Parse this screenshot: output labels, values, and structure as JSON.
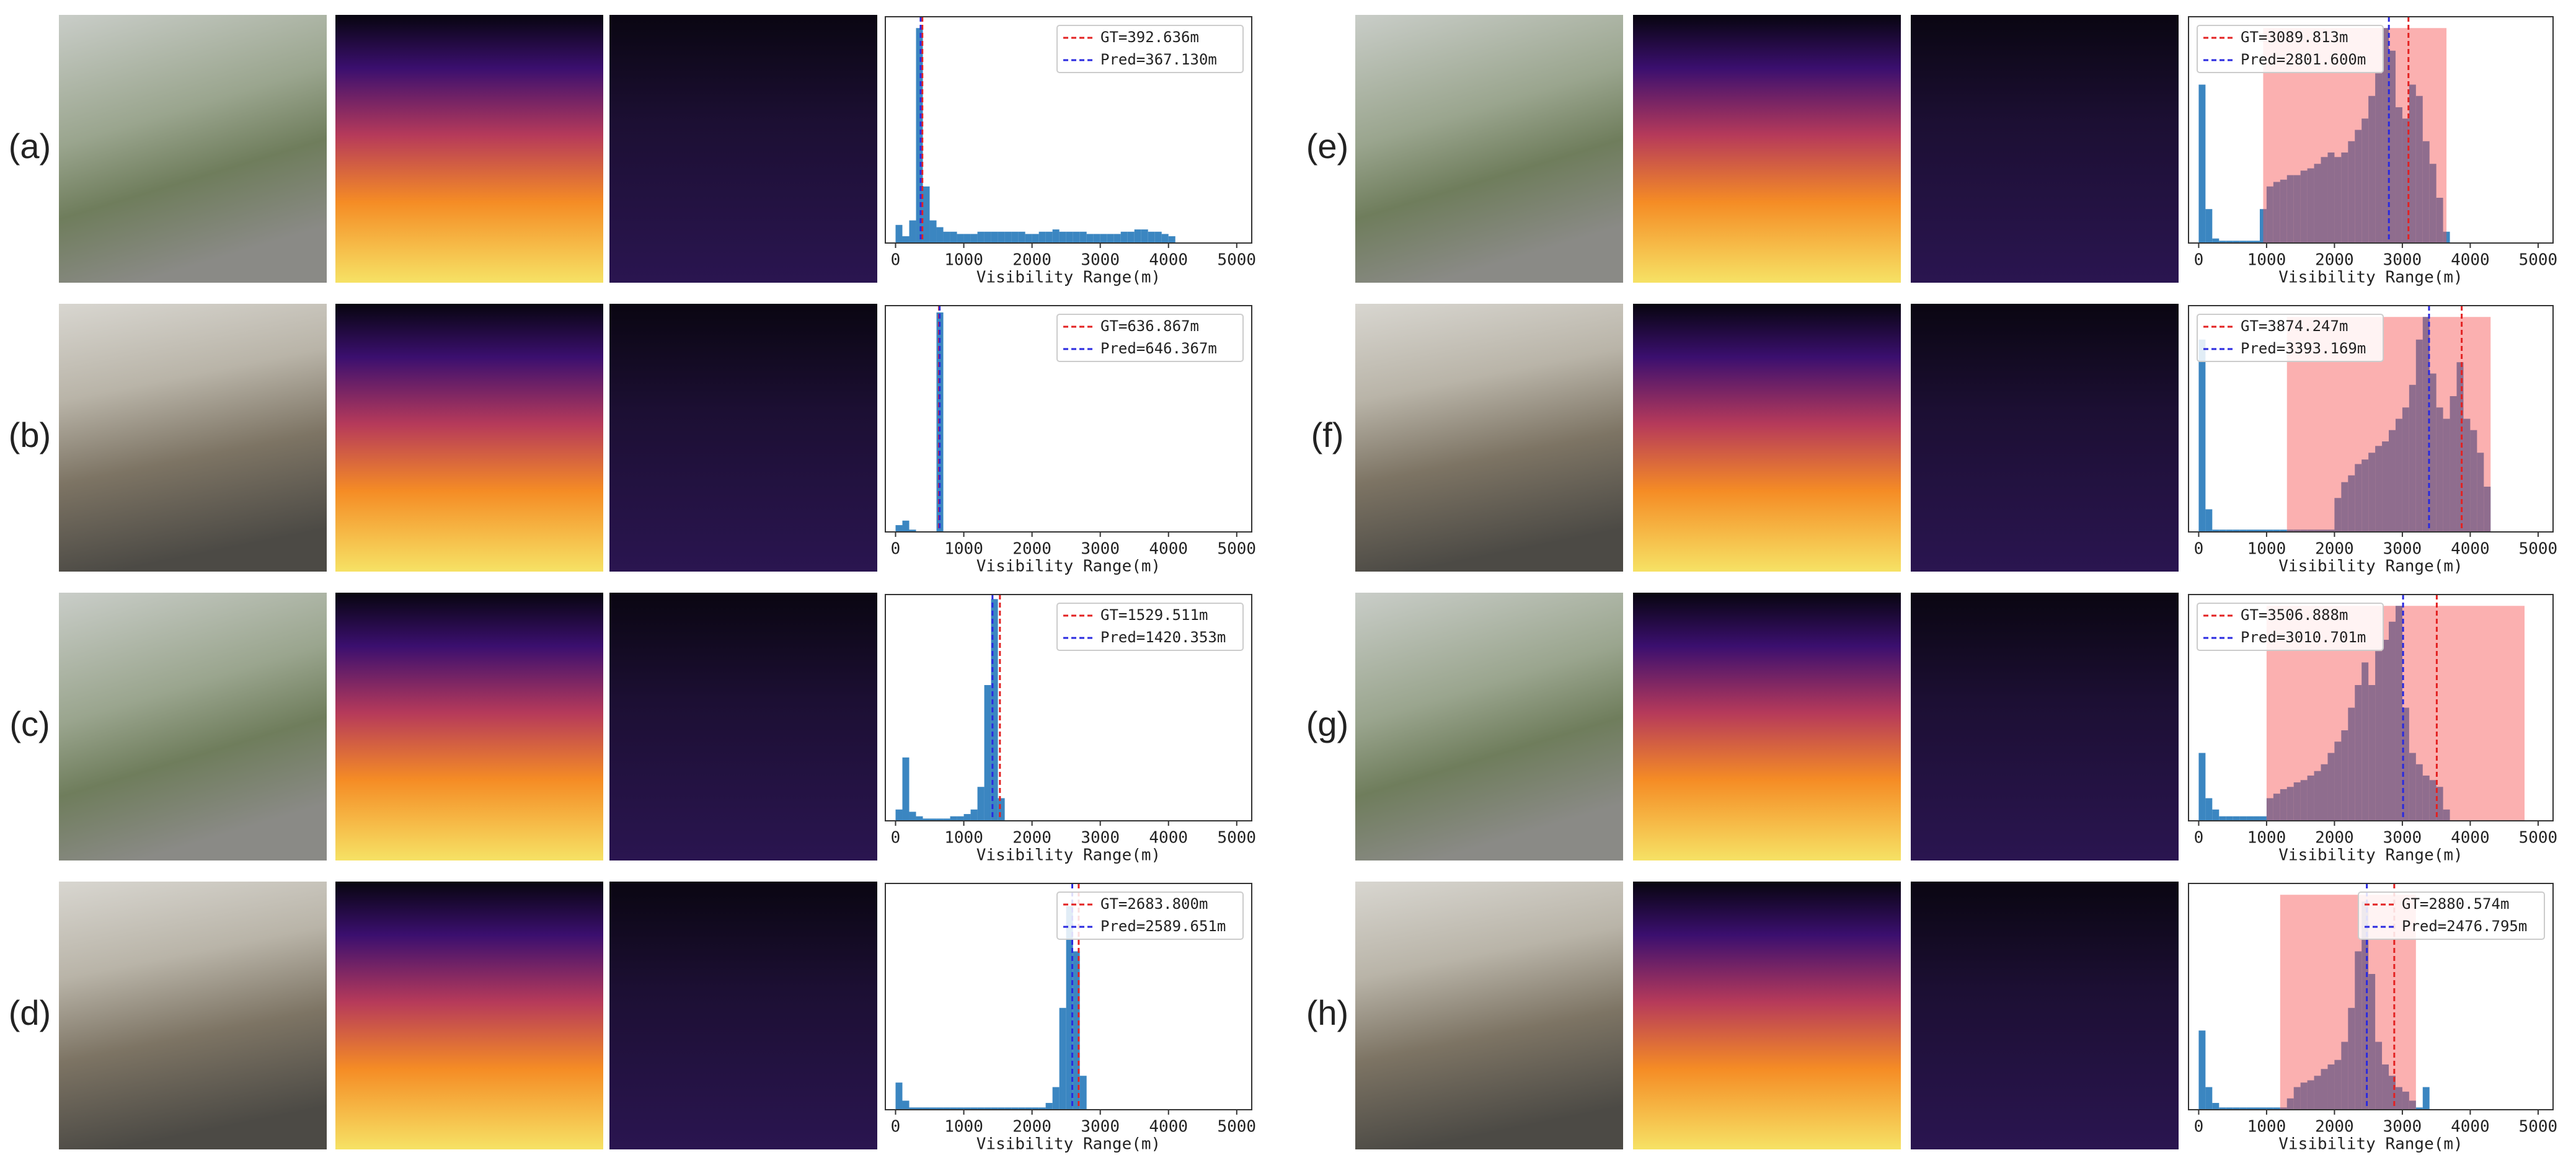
{
  "chart_data": [
    {
      "type": "histogram",
      "label": "(a)",
      "xlabel": "Visibility Range(m)",
      "legend": "upper right",
      "xlim": [
        -150,
        5220
      ],
      "ylim": [
        0,
        1
      ],
      "xticks": [
        0,
        1000,
        2000,
        3000,
        4000,
        5000
      ],
      "color": "#3b86c1",
      "bins": [
        0,
        100,
        200,
        300,
        400,
        500,
        600,
        700,
        800,
        900,
        1000,
        1100,
        1200,
        1300,
        1400,
        1500,
        1600,
        1700,
        1800,
        1900,
        2000,
        2100,
        2200,
        2300,
        2400,
        2500,
        2600,
        2700,
        2800,
        2900,
        3000,
        3100,
        3200,
        3300,
        3400,
        3500,
        3600,
        3700,
        3800,
        3900,
        4000,
        4100
      ],
      "counts": [
        0.08,
        0.03,
        0.1,
        0.95,
        0.25,
        0.1,
        0.07,
        0.05,
        0.05,
        0.04,
        0.04,
        0.04,
        0.05,
        0.05,
        0.05,
        0.05,
        0.05,
        0.05,
        0.05,
        0.04,
        0.04,
        0.05,
        0.05,
        0.06,
        0.05,
        0.05,
        0.05,
        0.05,
        0.04,
        0.04,
        0.04,
        0.04,
        0.04,
        0.05,
        0.05,
        0.06,
        0.06,
        0.05,
        0.05,
        0.04,
        0.03
      ],
      "lines": [
        {
          "name": "GT=392.636m",
          "value": 392.636,
          "color": "#e32222"
        },
        {
          "name": "Pred=367.130m",
          "value": 367.13,
          "color": "#2a2ae0"
        }
      ]
    },
    {
      "type": "histogram",
      "label": "(b)",
      "xlabel": "Visibility Range(m)",
      "legend": "upper right",
      "xlim": [
        -150,
        5220
      ],
      "ylim": [
        0,
        1
      ],
      "xticks": [
        0,
        1000,
        2000,
        3000,
        4000,
        5000
      ],
      "color": "#3b86c1",
      "bins": [
        0,
        100,
        200,
        300,
        400,
        500,
        600,
        700
      ],
      "counts": [
        0.03,
        0.05,
        0.01,
        0,
        0,
        0,
        0.97
      ],
      "lines": [
        {
          "name": "GT=636.867m",
          "value": 636.867,
          "color": "#e32222"
        },
        {
          "name": "Pred=646.367m",
          "value": 646.367,
          "color": "#2a2ae0"
        }
      ]
    },
    {
      "type": "histogram",
      "label": "(c)",
      "xlabel": "Visibility Range(m)",
      "legend": "upper right",
      "xlim": [
        -150,
        5220
      ],
      "ylim": [
        0,
        1
      ],
      "xticks": [
        0,
        1000,
        2000,
        3000,
        4000,
        5000
      ],
      "color": "#3b86c1",
      "bins": [
        0,
        100,
        200,
        300,
        400,
        500,
        600,
        700,
        800,
        900,
        1000,
        1100,
        1200,
        1300,
        1400,
        1500,
        1600
      ],
      "counts": [
        0.05,
        0.28,
        0.04,
        0.02,
        0.01,
        0.01,
        0.01,
        0.01,
        0.02,
        0.02,
        0.03,
        0.05,
        0.15,
        0.6,
        0.98,
        0.1
      ],
      "lines": [
        {
          "name": "GT=1529.511m",
          "value": 1529.511,
          "color": "#e32222"
        },
        {
          "name": "Pred=1420.353m",
          "value": 1420.353,
          "color": "#2a2ae0"
        }
      ]
    },
    {
      "type": "histogram",
      "label": "(d)",
      "xlabel": "Visibility Range(m)",
      "legend": "upper right",
      "xlim": [
        -150,
        5220
      ],
      "ylim": [
        0,
        1
      ],
      "xticks": [
        0,
        1000,
        2000,
        3000,
        4000,
        5000
      ],
      "color": "#3b86c1",
      "bins": [
        0,
        100,
        200,
        300,
        400,
        500,
        600,
        700,
        800,
        900,
        1000,
        1100,
        1200,
        1300,
        1400,
        1500,
        1600,
        1700,
        1800,
        1900,
        2000,
        2100,
        2200,
        2300,
        2400,
        2500,
        2600,
        2700,
        2800
      ],
      "counts": [
        0.12,
        0.04,
        0.01,
        0.01,
        0.01,
        0.01,
        0.01,
        0.01,
        0.01,
        0.01,
        0.01,
        0.01,
        0.01,
        0.01,
        0.01,
        0.01,
        0.01,
        0.01,
        0.01,
        0.01,
        0.01,
        0.01,
        0.03,
        0.1,
        0.45,
        0.9,
        0.7,
        0.15
      ],
      "lines": [
        {
          "name": "GT=2683.800m",
          "value": 2683.8,
          "color": "#e32222"
        },
        {
          "name": "Pred=2589.651m",
          "value": 2589.651,
          "color": "#2a2ae0"
        }
      ]
    },
    {
      "type": "histogram",
      "label": "(e)",
      "xlabel": "Visibility Range(m)",
      "legend": "upper left",
      "xlim": [
        -150,
        5220
      ],
      "ylim": [
        0,
        1
      ],
      "xticks": [
        0,
        1000,
        2000,
        3000,
        4000,
        5000
      ],
      "color": "#3b86c1",
      "shade": [
        950,
        3650
      ],
      "bins": [
        0,
        100,
        200,
        300,
        400,
        500,
        600,
        700,
        800,
        900,
        1000,
        1100,
        1200,
        1300,
        1400,
        1500,
        1600,
        1700,
        1800,
        1900,
        2000,
        2100,
        2200,
        2300,
        2400,
        2500,
        2600,
        2700,
        2800,
        2900,
        3000,
        3100,
        3200,
        3300,
        3400,
        3500,
        3600,
        3700
      ],
      "counts": [
        0.7,
        0.15,
        0.02,
        0.01,
        0.01,
        0.01,
        0.01,
        0.01,
        0.01,
        0.15,
        0.25,
        0.27,
        0.28,
        0.3,
        0.3,
        0.32,
        0.33,
        0.35,
        0.38,
        0.4,
        0.38,
        0.4,
        0.45,
        0.5,
        0.55,
        0.65,
        0.75,
        0.95,
        0.85,
        0.6,
        0.55,
        0.7,
        0.65,
        0.45,
        0.35,
        0.2,
        0.05
      ],
      "lines": [
        {
          "name": "GT=3089.813m",
          "value": 3089.813,
          "color": "#e32222"
        },
        {
          "name": "Pred=2801.600m",
          "value": 2801.6,
          "color": "#2a2ae0"
        }
      ]
    },
    {
      "type": "histogram",
      "label": "(f)",
      "xlabel": "Visibility Range(m)",
      "legend": "upper left",
      "xlim": [
        -150,
        5220
      ],
      "ylim": [
        0,
        1
      ],
      "xticks": [
        0,
        1000,
        2000,
        3000,
        4000,
        5000
      ],
      "color": "#3b86c1",
      "shade": [
        1300,
        4300
      ],
      "bins": [
        0,
        100,
        200,
        300,
        400,
        500,
        600,
        700,
        800,
        900,
        1000,
        1100,
        1200,
        1300,
        1400,
        1500,
        1600,
        1700,
        1800,
        1900,
        2000,
        2100,
        2200,
        2300,
        2400,
        2500,
        2600,
        2700,
        2800,
        2900,
        3000,
        3100,
        3200,
        3300,
        3400,
        3500,
        3600,
        3700,
        3800,
        3900,
        4000,
        4100,
        4200,
        4300
      ],
      "counts": [
        0.85,
        0.1,
        0.01,
        0.01,
        0.01,
        0.01,
        0.01,
        0.01,
        0.01,
        0.01,
        0.01,
        0.01,
        0.01,
        0.01,
        0.01,
        0.01,
        0.01,
        0.01,
        0.01,
        0.01,
        0.15,
        0.22,
        0.25,
        0.3,
        0.32,
        0.35,
        0.38,
        0.4,
        0.45,
        0.5,
        0.55,
        0.65,
        0.85,
        0.95,
        0.7,
        0.55,
        0.5,
        0.6,
        0.75,
        0.5,
        0.45,
        0.35,
        0.2
      ],
      "lines": [
        {
          "name": "GT=3874.247m",
          "value": 3874.247,
          "color": "#e32222"
        },
        {
          "name": "Pred=3393.169m",
          "value": 3393.169,
          "color": "#2a2ae0"
        }
      ]
    },
    {
      "type": "histogram",
      "label": "(g)",
      "xlabel": "Visibility Range(m)",
      "legend": "upper left",
      "xlim": [
        -150,
        5220
      ],
      "ylim": [
        0,
        1
      ],
      "xticks": [
        0,
        1000,
        2000,
        3000,
        4000,
        5000
      ],
      "color": "#3b86c1",
      "shade": [
        1000,
        4800
      ],
      "bins": [
        0,
        100,
        200,
        300,
        400,
        500,
        600,
        700,
        800,
        900,
        1000,
        1100,
        1200,
        1300,
        1400,
        1500,
        1600,
        1700,
        1800,
        1900,
        2000,
        2100,
        2200,
        2300,
        2400,
        2500,
        2600,
        2700,
        2800,
        2900,
        3000,
        3100,
        3200,
        3300,
        3400,
        3500,
        3600,
        3700
      ],
      "counts": [
        0.3,
        0.1,
        0.05,
        0.02,
        0.02,
        0.02,
        0.02,
        0.02,
        0.02,
        0.02,
        0.1,
        0.12,
        0.14,
        0.15,
        0.17,
        0.18,
        0.2,
        0.22,
        0.25,
        0.3,
        0.35,
        0.4,
        0.5,
        0.6,
        0.7,
        0.6,
        0.75,
        0.8,
        0.88,
        0.95,
        0.5,
        0.3,
        0.25,
        0.2,
        0.18,
        0.15,
        0.05
      ],
      "lines": [
        {
          "name": "GT=3506.888m",
          "value": 3506.888,
          "color": "#e32222"
        },
        {
          "name": "Pred=3010.701m",
          "value": 3010.701,
          "color": "#2a2ae0"
        }
      ]
    },
    {
      "type": "histogram",
      "label": "(h)",
      "xlabel": "Visibility Range(m)",
      "legend": "upper right",
      "xlim": [
        -150,
        5220
      ],
      "ylim": [
        0,
        1
      ],
      "xticks": [
        0,
        1000,
        2000,
        3000,
        4000,
        5000
      ],
      "color": "#3b86c1",
      "shade": [
        1200,
        3200
      ],
      "bins": [
        0,
        100,
        200,
        300,
        400,
        500,
        600,
        700,
        800,
        900,
        1000,
        1100,
        1200,
        1300,
        1400,
        1500,
        1600,
        1700,
        1800,
        1900,
        2000,
        2100,
        2200,
        2300,
        2400,
        2500,
        2600,
        2700,
        2800,
        2900,
        3000,
        3100,
        3200,
        3300,
        3400
      ],
      "counts": [
        0.35,
        0.1,
        0.03,
        0.01,
        0.01,
        0.01,
        0.01,
        0.01,
        0.01,
        0.01,
        0.01,
        0.01,
        0.01,
        0.05,
        0.1,
        0.12,
        0.13,
        0.15,
        0.18,
        0.2,
        0.22,
        0.3,
        0.45,
        0.7,
        0.92,
        0.6,
        0.3,
        0.2,
        0.15,
        0.1,
        0.08,
        0.04,
        0.01,
        0.1
      ],
      "lines": [
        {
          "name": "GT=2880.574m",
          "value": 2880.574,
          "color": "#e32222"
        },
        {
          "name": "Pred=2476.795m",
          "value": 2476.795,
          "color": "#2a2ae0"
        }
      ]
    }
  ]
}
